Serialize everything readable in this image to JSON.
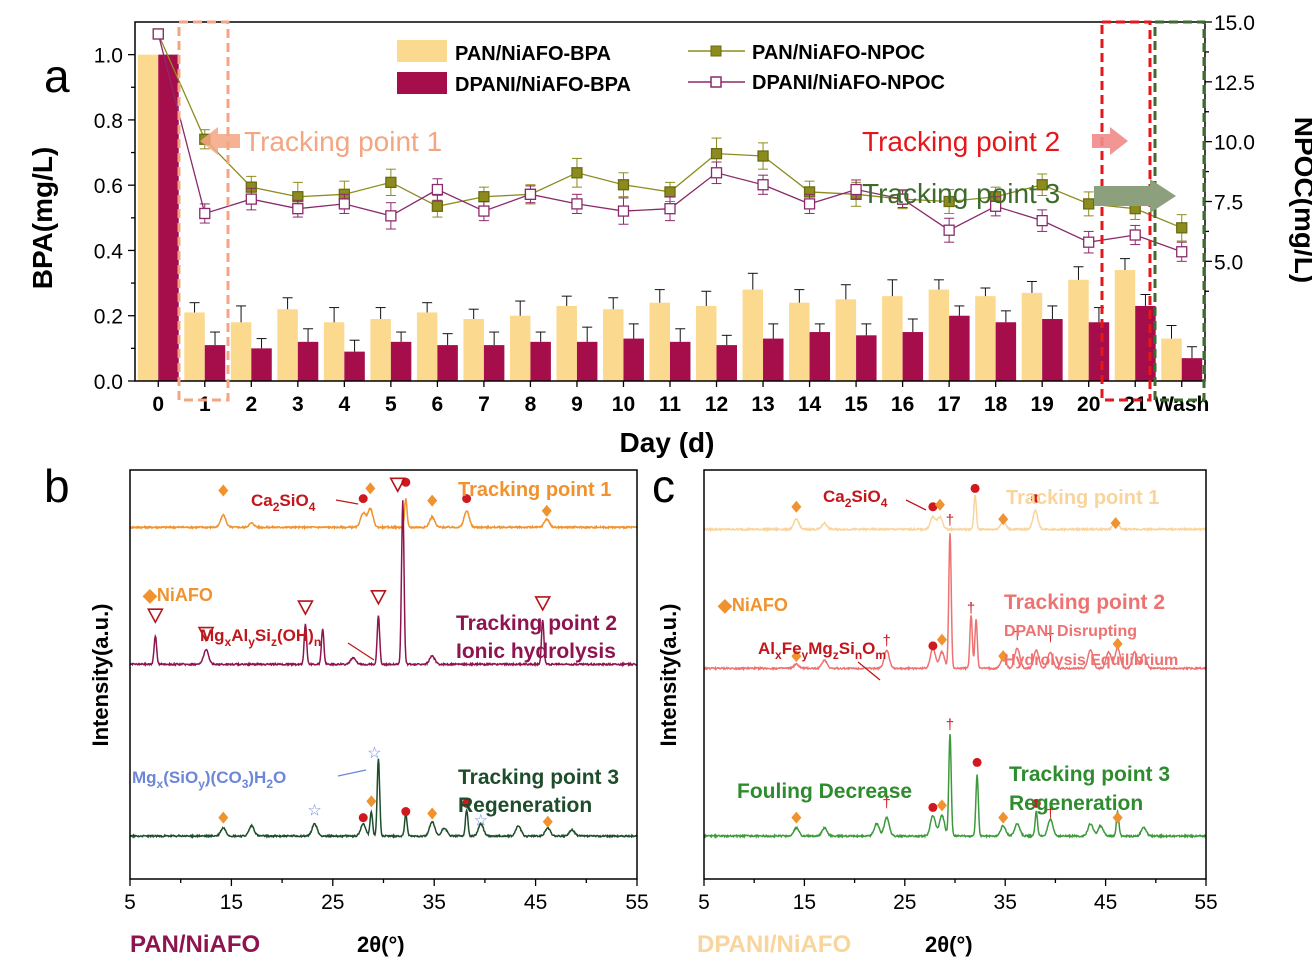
{
  "panel_labels": {
    "a": "a",
    "b": "b",
    "c": "c"
  },
  "colors": {
    "pan_bpa": "#FBD98F",
    "dpani_bpa": "#A50D4B",
    "pan_npoc": "#8C8C1E",
    "dpani_npoc": "#8B2A6B",
    "tp1_box": "#F4A582",
    "tp2_box": "#E5171B",
    "tp3_box": "#3D6B2B",
    "xrd_b_tp1": "#F0922D",
    "xrd_b_tp2": "#8E1450",
    "xrd_b_tp3": "#1E4D2B",
    "xrd_c_tp1": "#F9D49B",
    "xrd_c_tp2": "#EE7272",
    "xrd_c_tp3": "#3C9A3C",
    "diamond": "#F0922D",
    "circle": "#D0191E",
    "triangle": "#B5151B",
    "star": "#6C86D8",
    "dagger": "#D0191E"
  },
  "chart_data": [
    {
      "type": "bar",
      "panel": "a",
      "categories": [
        "0",
        "1",
        "2",
        "3",
        "4",
        "5",
        "6",
        "7",
        "8",
        "9",
        "10",
        "11",
        "12",
        "13",
        "14",
        "15",
        "16",
        "17",
        "18",
        "19",
        "20",
        "21",
        "Wash"
      ],
      "xlabel": "Day (d)",
      "ylabel": "BPA(mg/L)",
      "y2label": "NPOC(mg/L)",
      "ylim": [
        0,
        1.1
      ],
      "y2lim": [
        0,
        15
      ],
      "y2_axis_break_shown": [
        3.0,
        15.0
      ],
      "yticks": [
        "0.0",
        "0.2",
        "0.4",
        "0.6",
        "0.8",
        "1.0"
      ],
      "y2ticks": [
        "5.0",
        "7.5",
        "10.0",
        "12.5",
        "15.0"
      ],
      "series": [
        {
          "name": "PAN/NiAFO-BPA",
          "kind": "bar",
          "values": [
            1.0,
            0.21,
            0.18,
            0.22,
            0.18,
            0.19,
            0.21,
            0.19,
            0.2,
            0.23,
            0.22,
            0.24,
            0.23,
            0.28,
            0.24,
            0.25,
            0.26,
            0.28,
            0.26,
            0.27,
            0.31,
            0.34,
            0.13
          ],
          "errors": [
            0,
            0.03,
            0.05,
            0.035,
            0.045,
            0.035,
            0.03,
            0.03,
            0.045,
            0.03,
            0.035,
            0.04,
            0.045,
            0.05,
            0.04,
            0.045,
            0.05,
            0.03,
            0.025,
            0.035,
            0.04,
            0.035,
            0.04
          ]
        },
        {
          "name": "DPANI/NiAFO-BPA",
          "kind": "bar",
          "values": [
            1.0,
            0.11,
            0.1,
            0.12,
            0.09,
            0.12,
            0.11,
            0.11,
            0.12,
            0.12,
            0.13,
            0.12,
            0.11,
            0.13,
            0.15,
            0.14,
            0.15,
            0.2,
            0.18,
            0.19,
            0.18,
            0.23,
            0.07
          ],
          "errors": [
            0,
            0.04,
            0.03,
            0.04,
            0.035,
            0.03,
            0.035,
            0.04,
            0.03,
            0.045,
            0.045,
            0.04,
            0.03,
            0.045,
            0.025,
            0.035,
            0.04,
            0.03,
            0.035,
            0.04,
            0.045,
            0.035,
            0.035
          ]
        },
        {
          "name": "PAN/NiAFO-NPOC",
          "kind": "line",
          "values": [
            14.5,
            10.1,
            8.1,
            7.7,
            7.8,
            8.3,
            7.3,
            7.7,
            7.8,
            8.7,
            8.2,
            7.9,
            9.5,
            9.4,
            7.9,
            7.8,
            7.6,
            7.5,
            7.7,
            8.2,
            7.4,
            7.2,
            6.4
          ],
          "errors": [
            0,
            0.4,
            0.45,
            0.6,
            0.55,
            0.55,
            0.45,
            0.4,
            0.4,
            0.6,
            0.5,
            0.4,
            0.65,
            0.55,
            0.45,
            0.5,
            0.4,
            0.5,
            0.4,
            0.45,
            0.5,
            0.45,
            0.55
          ]
        },
        {
          "name": "DPANI/NiAFO-NPOC",
          "kind": "line",
          "values": [
            14.5,
            7.0,
            7.6,
            7.2,
            7.4,
            6.9,
            8.0,
            7.1,
            7.8,
            7.4,
            7.1,
            7.2,
            8.7,
            8.2,
            7.4,
            8.0,
            7.6,
            6.3,
            7.3,
            6.7,
            5.8,
            6.1,
            5.4
          ],
          "errors": [
            0,
            0.4,
            0.45,
            0.35,
            0.4,
            0.55,
            0.45,
            0.4,
            0.35,
            0.4,
            0.55,
            0.5,
            0.45,
            0.4,
            0.4,
            0.4,
            0.35,
            0.5,
            0.4,
            0.45,
            0.45,
            0.4,
            0.4
          ]
        }
      ],
      "annotations": [
        "Tracking point 1",
        "Tracking point 2",
        "Tracking point 3"
      ],
      "legend": "top-center"
    },
    {
      "type": "line",
      "panel": "b",
      "xlabel": "2θ(°)",
      "ylabel": "Intensity(a.u.)",
      "xlim": [
        5,
        55
      ],
      "xticks": [
        "5",
        "15",
        "25",
        "35",
        "45",
        "55"
      ],
      "footer": "PAN/NiAFO",
      "series": [
        {
          "name": "Tracking point 1",
          "baseline": 0.86,
          "peaks": [
            [
              14.2,
              0.03
            ],
            [
              17.0,
              0.01
            ],
            [
              28.0,
              0.035
            ],
            [
              28.7,
              0.045
            ],
            [
              32.2,
              0.07
            ],
            [
              34.8,
              0.025
            ],
            [
              38.2,
              0.04
            ],
            [
              46.1,
              0.02
            ]
          ]
        },
        {
          "name": "Tracking point 2",
          "subtitle": "Ionic hydrolysis",
          "baseline": 0.525,
          "peaks": [
            [
              7.5,
              0.07
            ],
            [
              12.5,
              0.035
            ],
            [
              22.3,
              0.1
            ],
            [
              24.0,
              0.085
            ],
            [
              27.0,
              0.015
            ],
            [
              29.5,
              0.12
            ],
            [
              31.9,
              0.4
            ],
            [
              34.8,
              0.02
            ],
            [
              45.7,
              0.11
            ]
          ]
        },
        {
          "name": "Tracking point 3",
          "subtitle": "Regeneration",
          "baseline": 0.105,
          "peaks": [
            [
              14.2,
              0.02
            ],
            [
              17.0,
              0.025
            ],
            [
              23.2,
              0.03
            ],
            [
              28.0,
              0.03
            ],
            [
              28.8,
              0.06
            ],
            [
              29.5,
              0.19
            ],
            [
              32.2,
              0.055
            ],
            [
              34.8,
              0.035
            ],
            [
              36.0,
              0.02
            ],
            [
              38.2,
              0.065
            ],
            [
              39.6,
              0.03
            ],
            [
              43.3,
              0.025
            ],
            [
              46.2,
              0.02
            ],
            [
              48.6,
              0.015
            ]
          ]
        }
      ],
      "annotations": [
        "NiAFO",
        "Ca2SiO4",
        "MgxAlySiz(OH)n",
        "Mgx(SiOy)(CO3)H2O"
      ]
    },
    {
      "type": "line",
      "panel": "c",
      "xlabel": "2θ(°)",
      "ylabel": "Intensity(a.u.)",
      "xlim": [
        5,
        55
      ],
      "xticks": [
        "5",
        "15",
        "25",
        "35",
        "45",
        "55"
      ],
      "footer": "DPANI/NiAFO",
      "series": [
        {
          "name": "Tracking point 1",
          "baseline": 0.855,
          "peaks": [
            [
              14.2,
              0.025
            ],
            [
              17.0,
              0.015
            ],
            [
              27.8,
              0.03
            ],
            [
              28.5,
              0.03
            ],
            [
              32.0,
              0.085
            ],
            [
              34.8,
              0.02
            ],
            [
              38.0,
              0.045
            ],
            [
              46.0,
              0.02
            ]
          ]
        },
        {
          "name": "Tracking point 2",
          "subtitle": "DPANI Disrupting Hydrolysis Equilibrium",
          "baseline": 0.515,
          "peaks": [
            [
              14.2,
              0.01
            ],
            [
              17.0,
              0.02
            ],
            [
              23.2,
              0.045
            ],
            [
              27.8,
              0.05
            ],
            [
              28.7,
              0.04
            ],
            [
              29.5,
              0.33
            ],
            [
              31.6,
              0.13
            ],
            [
              32.1,
              0.12
            ],
            [
              34.8,
              0.025
            ],
            [
              36.2,
              0.05
            ],
            [
              38.1,
              0.045
            ],
            [
              39.5,
              0.04
            ],
            [
              43.5,
              0.045
            ],
            [
              45.3,
              0.04
            ],
            [
              46.2,
              0.05
            ],
            [
              47.9,
              0.04
            ],
            [
              48.8,
              0.035
            ]
          ]
        },
        {
          "name": "Tracking point 3",
          "subtitle": "Regeneration",
          "baseline": 0.105,
          "peaks": [
            [
              14.2,
              0.02
            ],
            [
              17.0,
              0.02
            ],
            [
              22.2,
              0.03
            ],
            [
              23.2,
              0.045
            ],
            [
              27.8,
              0.05
            ],
            [
              28.7,
              0.05
            ],
            [
              29.5,
              0.25
            ],
            [
              32.2,
              0.15
            ],
            [
              34.8,
              0.025
            ],
            [
              36.2,
              0.03
            ],
            [
              38.1,
              0.06
            ],
            [
              39.5,
              0.04
            ],
            [
              43.5,
              0.03
            ],
            [
              44.5,
              0.025
            ],
            [
              46.2,
              0.06
            ],
            [
              48.8,
              0.02
            ]
          ]
        }
      ],
      "annotations": [
        "NiAFO",
        "Ca2SiO4",
        "AlxFeyMgzSinOm",
        "Fouling Decrease"
      ]
    }
  ],
  "text": {
    "tp1": "Tracking point 1",
    "tp2": "Tracking point 2",
    "tp3": "Tracking point 3",
    "b_tp2_sub": "Ionic hydrolysis",
    "b_tp3_sub": "Regeneration",
    "c_tp2_sub1": "DPANI Disrupting",
    "c_tp2_sub2": "Hydrolysis Equilibrium",
    "c_tp3_sub": "Regeneration",
    "c_fouling": "Fouling Decrease",
    "niafo": "◆NiAFO",
    "ca2sio4": [
      "Ca",
      "2",
      "SiO",
      "4"
    ],
    "mgx_al": [
      "Mg",
      "x",
      "Al",
      "y",
      "Si",
      "z",
      "(OH)",
      "n"
    ],
    "mgx_sio": [
      "Mg",
      "x",
      "(SiO",
      "y",
      ")(CO",
      "3",
      ")H",
      "2",
      "O"
    ],
    "alx_fe": [
      "Al",
      "x",
      "Fe",
      "y",
      "Mg",
      "z",
      "Si",
      "n",
      "O",
      "m"
    ],
    "xlabel_bc": "2θ(°)",
    "footer_b": "PAN/NiAFO",
    "footer_c": "DPANI/NiAFO"
  }
}
